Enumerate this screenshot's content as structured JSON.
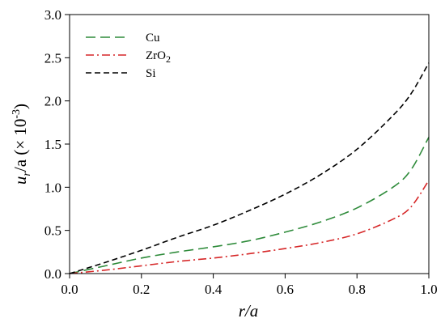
{
  "chart_data": {
    "type": "line",
    "title": "",
    "xlabel": {
      "italic": "r",
      "rest": "/a"
    },
    "ylabel": {
      "base": "u",
      "sub": "r",
      "rest": "/a  (× 10",
      "sup": "-3",
      "close": ")"
    },
    "xlim": [
      0.0,
      1.0
    ],
    "ylim": [
      0.0,
      3.0
    ],
    "x_ticks": [
      "0.0",
      "0.2",
      "0.4",
      "0.6",
      "0.8",
      "1.0"
    ],
    "y_ticks": [
      "0.0",
      "0.5",
      "1.0",
      "1.5",
      "2.0",
      "2.5",
      "3.0"
    ],
    "grid": false,
    "legend_position": "top-left",
    "x": [
      0.0,
      0.1,
      0.2,
      0.3,
      0.4,
      0.5,
      0.6,
      0.7,
      0.8,
      0.9,
      0.95,
      1.0
    ],
    "series": [
      {
        "name": "Cu",
        "name_sub": "",
        "color": "#2e8b3a",
        "dash": "12,6",
        "values": [
          0.0,
          0.09,
          0.18,
          0.25,
          0.31,
          0.38,
          0.48,
          0.6,
          0.76,
          1.0,
          1.2,
          1.58
        ]
      },
      {
        "name": "ZrO",
        "name_sub": "2",
        "color": "#d62728",
        "dash": "10,4,2,4",
        "values": [
          0.0,
          0.04,
          0.09,
          0.14,
          0.18,
          0.23,
          0.29,
          0.36,
          0.46,
          0.63,
          0.77,
          1.08
        ]
      },
      {
        "name": "Si",
        "name_sub": "",
        "color": "#000000",
        "dash": "7,4",
        "values": [
          0.0,
          0.13,
          0.27,
          0.42,
          0.56,
          0.73,
          0.92,
          1.15,
          1.44,
          1.83,
          2.08,
          2.44
        ]
      }
    ]
  }
}
